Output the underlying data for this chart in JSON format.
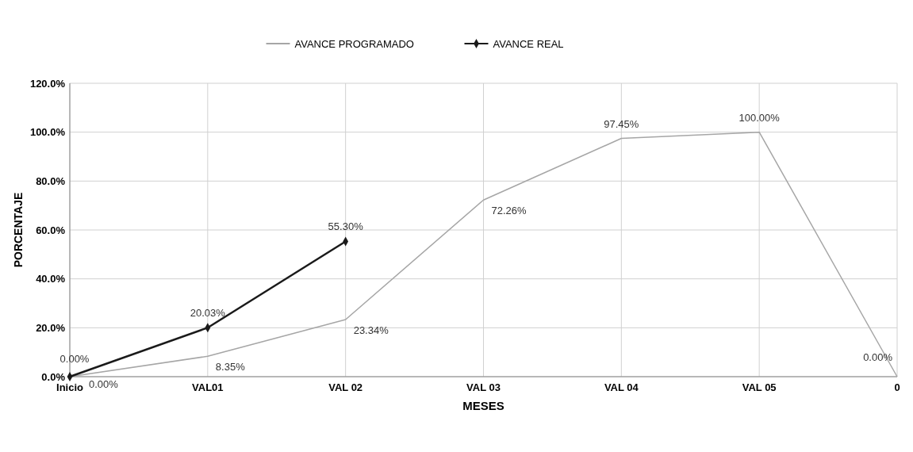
{
  "chart_data": {
    "type": "line",
    "xlabel": "MESES",
    "ylabel": "PORCENTAJE",
    "categories": [
      "Inicio",
      "VAL01",
      "VAL 02",
      "VAL 03",
      "VAL 04",
      "VAL 05",
      "0"
    ],
    "series": [
      {
        "name": "AVANCE PROGRAMADO",
        "color": "#a6a6a6",
        "marker": "none",
        "values": [
          0,
          8.35,
          23.34,
          72.26,
          97.45,
          100,
          0
        ],
        "value_labels": [
          "0.00%",
          "8.35%",
          "23.34%",
          "72.26%",
          "97.45%",
          "100.00%",
          "0.00%"
        ]
      },
      {
        "name": "AVANCE REAL",
        "color": "#1a1a1a",
        "marker": "diamond",
        "values": [
          0,
          20.03,
          55.3,
          null,
          null,
          null,
          null
        ],
        "value_labels": [
          "0.00%",
          "20.03%",
          "55.30%",
          null,
          null,
          null,
          null
        ]
      }
    ],
    "ylim": [
      0,
      120
    ],
    "yticks": [
      {
        "value": 0,
        "label": "0.0%"
      },
      {
        "value": 20,
        "label": "20.0%"
      },
      {
        "value": 40,
        "label": "40.0%"
      },
      {
        "value": 60,
        "label": "60.0%"
      },
      {
        "value": 80,
        "label": "80.0%"
      },
      {
        "value": 100,
        "label": "100.0%"
      },
      {
        "value": 120,
        "label": "120.0%"
      }
    ],
    "grid": true,
    "legend": "top",
    "line_style": "solid"
  }
}
